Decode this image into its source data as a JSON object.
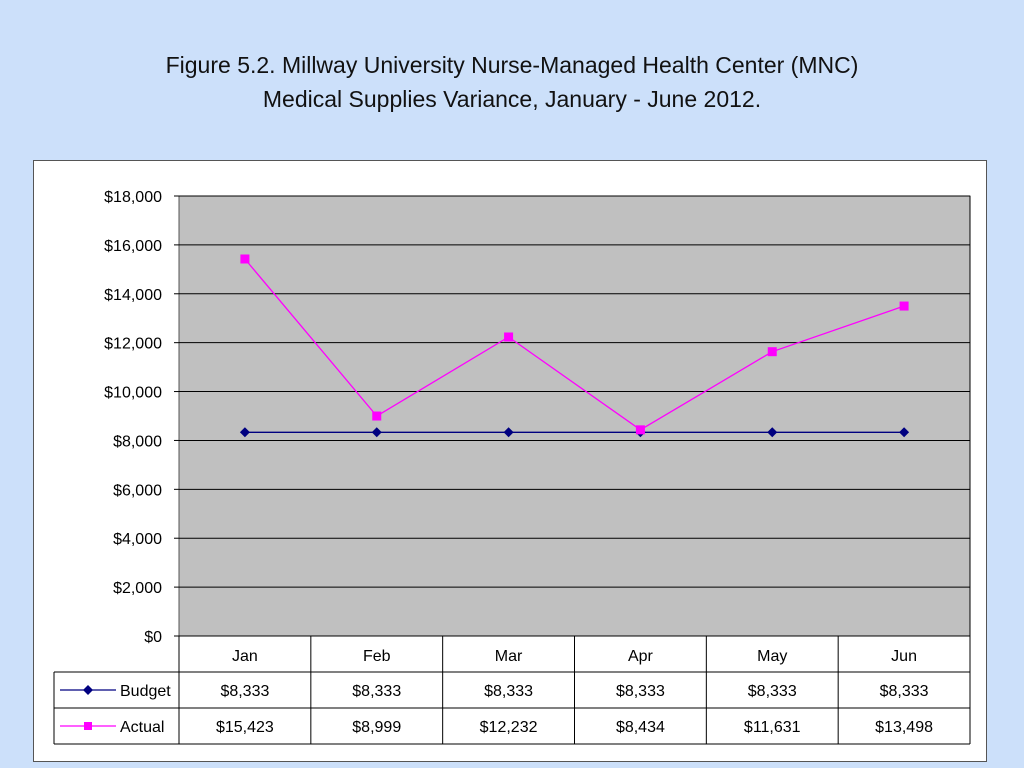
{
  "page": {
    "title_line1": "Figure 5.2.  Millway University Nurse-Managed Health Center (MNC)",
    "title_line2": "Medical Supplies Variance, January - June 2012."
  },
  "chart_data": {
    "type": "line",
    "categories": [
      "Jan",
      "Feb",
      "Mar",
      "Apr",
      "May",
      "Jun"
    ],
    "series": [
      {
        "name": "Budget",
        "values": [
          8333,
          8333,
          8333,
          8333,
          8333,
          8333
        ],
        "labels": [
          "$8,333",
          "$8,333",
          "$8,333",
          "$8,333",
          "$8,333",
          "$8,333"
        ],
        "color": "#000080",
        "marker": "diamond"
      },
      {
        "name": "Actual",
        "values": [
          15423,
          8999,
          12232,
          8434,
          11631,
          13498
        ],
        "labels": [
          "$15,423",
          "$8,999",
          "$12,232",
          "$8,434",
          "$11,631",
          "$13,498"
        ],
        "color": "#ff00ff",
        "marker": "square"
      }
    ],
    "yticks": [
      "$0",
      "$2,000",
      "$4,000",
      "$6,000",
      "$8,000",
      "$10,000",
      "$12,000",
      "$14,000",
      "$16,000",
      "$18,000"
    ],
    "ylim": [
      0,
      18000
    ],
    "grid": true,
    "plot_background": "#c0c0c0",
    "legend": "data-table"
  }
}
